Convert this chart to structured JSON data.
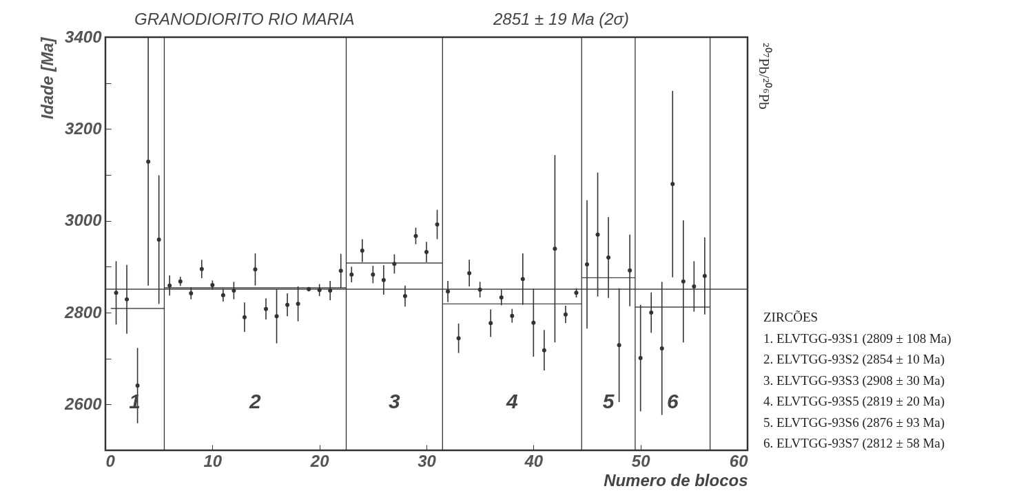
{
  "chart_data": {
    "type": "scatter",
    "title": "GRANODIORITO RIO MARIA",
    "subtitle": "2851 ± 19 Ma (2σ)",
    "xlabel": "Numero de blocos",
    "ylabel": "Idade [Ma]",
    "y2label": "²⁰⁷Pb/²⁰⁶Pb",
    "xlim": [
      0,
      60
    ],
    "xticks": [
      0,
      10,
      20,
      30,
      40,
      50,
      60
    ],
    "ylim": [
      2500,
      3400
    ],
    "yticks": [
      {
        "value": 2500,
        "label": null
      },
      2600,
      {
        "value": 2700,
        "label": null
      },
      2800,
      {
        "value": 2900,
        "label": null
      },
      3000,
      {
        "value": 3100,
        "label": null
      },
      3200,
      {
        "value": 3300,
        "label": null
      },
      3400
    ],
    "grid": false,
    "marker": "circle",
    "series": [
      {
        "color": "#333333",
        "x": [
          1,
          2,
          3,
          4,
          5,
          6,
          7,
          8,
          9,
          10,
          11,
          12,
          13,
          14,
          15,
          16,
          17,
          18,
          19,
          20,
          21,
          22,
          23,
          24,
          25,
          26,
          27,
          28,
          29,
          30,
          31,
          32,
          33,
          34,
          35,
          36,
          37,
          38,
          39,
          40,
          41,
          42,
          43,
          44,
          45,
          46,
          47,
          48,
          49,
          50,
          51,
          52,
          53,
          54,
          55,
          56
        ],
        "values": [
          2843,
          2829,
          2641,
          3129,
          2959,
          2859,
          2868,
          2842,
          2895,
          2860,
          2838,
          2848,
          2790,
          2894,
          2808,
          2792,
          2817,
          2819,
          2851,
          2849,
          2848,
          2891,
          2883,
          2935,
          2883,
          2871,
          2906,
          2836,
          2967,
          2932,
          2992,
          2846,
          2744,
          2886,
          2850,
          2777,
          2833,
          2793,
          2873,
          2778,
          2718,
          2939,
          2796,
          2843,
          2905,
          2970,
          2920,
          2729,
          2892,
          2701,
          2800,
          2722,
          3080,
          2868,
          2857,
          2880
        ],
        "errors": [
          69,
          75,
          82,
          [
            2859,
            3400
          ],
          140,
          22,
          10,
          13,
          20,
          10,
          14,
          19,
          32,
          35,
          23,
          59,
          25,
          38,
          5,
          13,
          21,
          37,
          17,
          25,
          19,
          32,
          21,
          23,
          18,
          22,
          32,
          23,
          32,
          29,
          17,
          30,
          17,
          15,
          56,
          74,
          44,
          204,
          19,
          10,
          140,
          135,
          88,
          124,
          78,
          116,
          44,
          145,
          203,
          133,
          55,
          84
        ]
      },
      {
        "type": "line",
        "marker": "none",
        "color": "#444444",
        "x": [
          0.5,
          5.5
        ],
        "values": [
          2809,
          2809
        ]
      },
      {
        "type": "line",
        "marker": "none",
        "color": "#444444",
        "x": [
          5.5,
          22.5
        ],
        "values": [
          2854,
          2854
        ]
      },
      {
        "type": "line",
        "marker": "none",
        "color": "#444444",
        "x": [
          22.5,
          31.5
        ],
        "values": [
          2908,
          2908
        ]
      },
      {
        "type": "line",
        "marker": "none",
        "color": "#444444",
        "x": [
          31.5,
          44.5
        ],
        "values": [
          2819,
          2819
        ]
      },
      {
        "type": "line",
        "marker": "none",
        "color": "#444444",
        "x": [
          44.5,
          49.5
        ],
        "values": [
          2876,
          2876
        ]
      },
      {
        "type": "line",
        "marker": "none",
        "color": "#444444",
        "x": [
          49.5,
          56.5
        ],
        "values": [
          2812,
          2812
        ]
      }
    ],
    "ref_lines": [
      {
        "axis": "y",
        "value": 2851,
        "color": "#444444"
      },
      {
        "axis": "x",
        "value": 5.5,
        "color": "#333333"
      },
      {
        "axis": "x",
        "value": 22.5,
        "color": "#333333"
      },
      {
        "axis": "x",
        "value": 31.5,
        "color": "#333333"
      },
      {
        "axis": "x",
        "value": 44.5,
        "color": "#333333"
      },
      {
        "axis": "x",
        "value": 49.5,
        "color": "#333333"
      },
      {
        "axis": "x",
        "value": 56.5,
        "color": "#333333"
      }
    ],
    "annotations": [
      "1",
      "2",
      "3",
      "4",
      "5",
      "6",
      "ZIRCÕES",
      "1. ELVTGG-93S1 (2809 ± 108 Ma)",
      "2. ELVTGG-93S2 (2854 ± 10 Ma)",
      "3. ELVTGG-93S3 (2908 ± 30 Ma)",
      "4. ELVTGG-93S5 (2819 ± 20 Ma)",
      "5. ELVTGG-93S6 (2876 ± 93 Ma)",
      "6. ELVTGG-93S7 (2812 ± 58 Ma)"
    ]
  }
}
